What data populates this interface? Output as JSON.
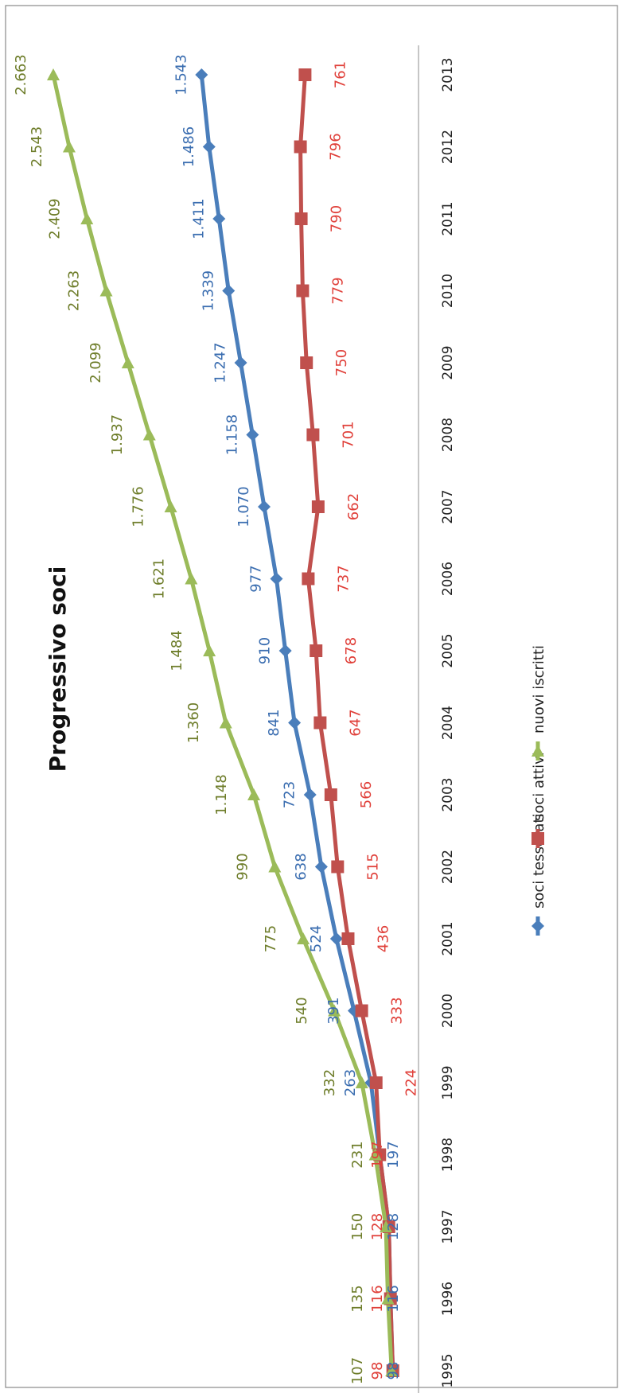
{
  "chart_data": {
    "type": "line",
    "title": "Progressivo soci",
    "xlabel": "",
    "ylabel": "",
    "ylim": [
      0,
      2800
    ],
    "grid": false,
    "legend_position": "bottom",
    "categories": [
      "1995",
      "1996",
      "1997",
      "1998",
      "1999",
      "2000",
      "2001",
      "2002",
      "2003",
      "2004",
      "2005",
      "2006",
      "2007",
      "2008",
      "2009",
      "2010",
      "2011",
      "2012",
      "2013"
    ],
    "series": [
      {
        "name": "soci tesserati",
        "color": "#4a7ebb",
        "label_color": "#3a6db0",
        "marker": "diamond",
        "values": [
          98,
          116,
          128,
          197,
          263,
          391,
          524,
          638,
          723,
          841,
          910,
          977,
          1070,
          1158,
          1247,
          1339,
          1411,
          1486,
          1543
        ],
        "labels": [
          "98",
          "116",
          "128",
          "197",
          "263",
          "391",
          "524",
          "638",
          "723",
          "841",
          "910",
          "977",
          "1.070",
          "1.158",
          "1.247",
          "1.339",
          "1.411",
          "1.486",
          "1.543"
        ]
      },
      {
        "name": "soci attivi",
        "color": "#c0504d",
        "label_color": "#e0403a",
        "marker": "square",
        "values": [
          98,
          116,
          128,
          197,
          224,
          333,
          436,
          515,
          566,
          647,
          678,
          737,
          662,
          701,
          750,
          779,
          790,
          796,
          761
        ],
        "labels": [
          "98",
          "116",
          "128",
          "197",
          "224",
          "333",
          "436",
          "515",
          "566",
          "647",
          "678",
          "737",
          "662",
          "701",
          "750",
          "779",
          "790",
          "796",
          "761"
        ]
      },
      {
        "name": "nuovi iscritti",
        "color": "#9bbb59",
        "label_color": "#6e7d2a",
        "marker": "triangle",
        "values": [
          107,
          135,
          150,
          231,
          332,
          540,
          775,
          990,
          1148,
          1360,
          1484,
          1621,
          1776,
          1937,
          2099,
          2263,
          2409,
          2543,
          2663
        ],
        "labels": [
          "107",
          "135",
          "150",
          "231",
          "332",
          "540",
          "775",
          "990",
          "1.148",
          "1.360",
          "1.484",
          "1.621",
          "1.776",
          "1.937",
          "2.099",
          "2.263",
          "2.409",
          "2.543",
          "2.663"
        ]
      }
    ]
  }
}
